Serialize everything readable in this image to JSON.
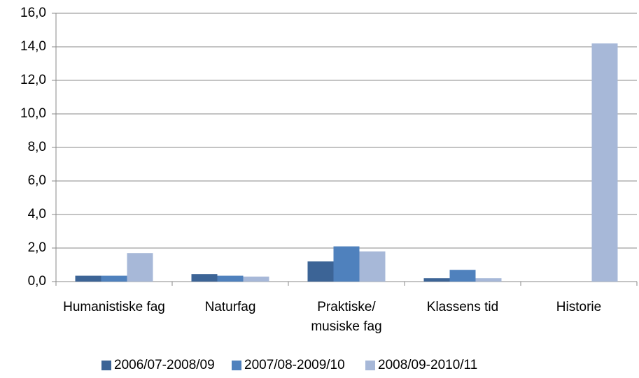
{
  "chart_data": {
    "type": "bar",
    "categories": [
      "Humanistiske fag",
      "Naturfag",
      "Praktiske/ musiske fag",
      "Klassens tid",
      "Historie"
    ],
    "series": [
      {
        "name": "2006/07-2008/09",
        "color": "#3c6496",
        "values": [
          0.35,
          0.45,
          1.2,
          0.2,
          0
        ]
      },
      {
        "name": "2007/08-2009/10",
        "color": "#4f81bd",
        "values": [
          0.35,
          0.35,
          2.1,
          0.7,
          0
        ]
      },
      {
        "name": "2008/09-2010/11",
        "color": "#a7b8d8",
        "values": [
          1.7,
          0.3,
          1.8,
          0.2,
          14.2
        ]
      }
    ],
    "ylim": [
      0,
      16
    ],
    "yticks": [
      {
        "value": 0,
        "label": "0,0"
      },
      {
        "value": 2,
        "label": "2,0"
      },
      {
        "value": 4,
        "label": "4,0"
      },
      {
        "value": 6,
        "label": "6,0"
      },
      {
        "value": 8,
        "label": "8,0"
      },
      {
        "value": 10,
        "label": "10,0"
      },
      {
        "value": 12,
        "label": "12,0"
      },
      {
        "value": 14,
        "label": "14,0"
      },
      {
        "value": 16,
        "label": "16,0"
      }
    ],
    "grid": true,
    "legend": "bottom"
  }
}
